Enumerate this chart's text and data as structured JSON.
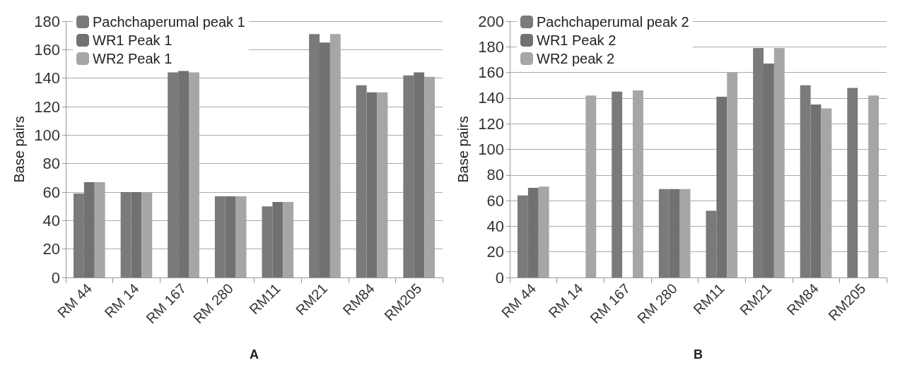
{
  "chart_data": [
    {
      "type": "bar",
      "xlabel": "A",
      "ylabel": "Base pairs",
      "categories": [
        "RM 44",
        "RM 14",
        "RM 167",
        "RM 280",
        "RM11",
        "RM21",
        "RM84",
        "RM205"
      ],
      "series": [
        {
          "name": "Pachchaperumal peak 1",
          "color": "#7a7a7a",
          "values": [
            59,
            60,
            144,
            57,
            50,
            171,
            135,
            142
          ]
        },
        {
          "name": "WR1 Peak 1",
          "color": "#717171",
          "values": [
            67,
            60,
            145,
            57,
            53,
            165,
            130,
            144
          ]
        },
        {
          "name": "WR2 Peak 1",
          "color": "#a6a6a6",
          "values": [
            67,
            60,
            144,
            57,
            53,
            171,
            130,
            141
          ]
        }
      ],
      "ylim": [
        0,
        180
      ],
      "yticks": [
        0,
        20,
        40,
        60,
        80,
        100,
        120,
        140,
        160,
        180
      ],
      "grid": "y",
      "legend": "top left"
    },
    {
      "type": "bar",
      "xlabel": "B",
      "ylabel": "Base pairs",
      "categories": [
        "RM 44",
        "RM 14",
        "RM 167",
        "RM 280",
        "RM11",
        "RM21",
        "RM84",
        "RM205"
      ],
      "series": [
        {
          "name": "Pachchaperumal peak 2",
          "color": "#7a7a7a",
          "values": [
            64,
            null,
            145,
            69,
            52,
            179,
            150,
            148
          ]
        },
        {
          "name": "WR1 Peak 2",
          "color": "#717171",
          "values": [
            70,
            null,
            null,
            69,
            141,
            167,
            135,
            null
          ]
        },
        {
          "name": "WR2 peak 2",
          "color": "#a6a6a6",
          "values": [
            71,
            142,
            146,
            69,
            160,
            179,
            132,
            142
          ]
        }
      ],
      "ylim": [
        0,
        200
      ],
      "yticks": [
        0,
        20,
        40,
        60,
        80,
        100,
        120,
        140,
        160,
        180,
        200
      ],
      "grid": "y",
      "legend": "top left"
    }
  ]
}
